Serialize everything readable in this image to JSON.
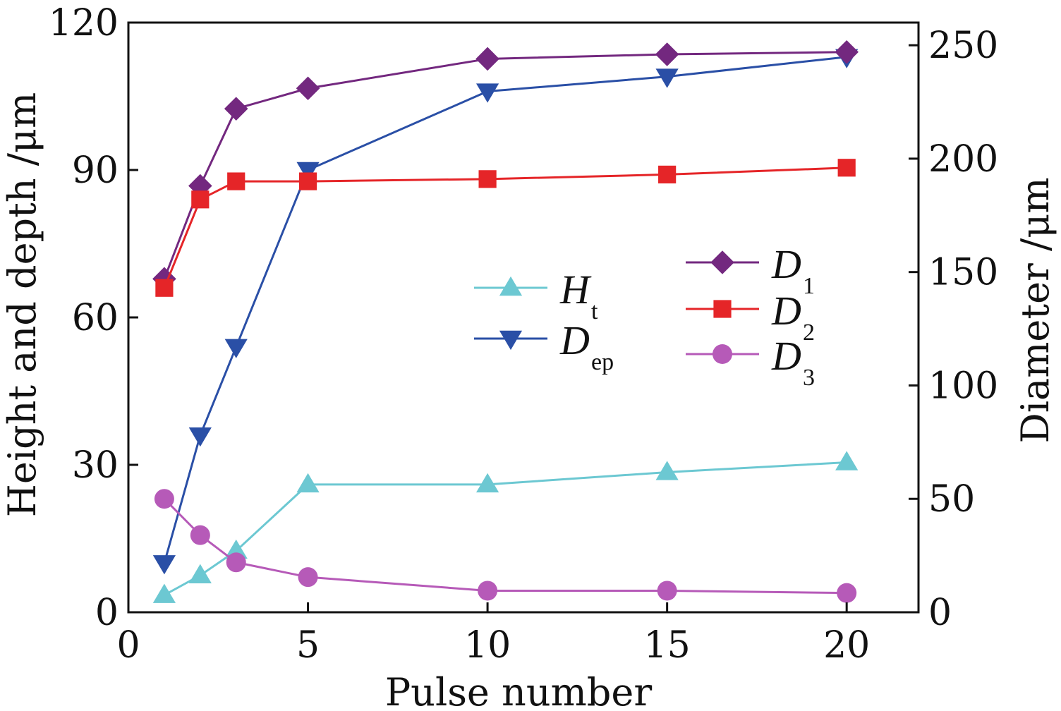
{
  "chart_data": {
    "type": "line",
    "title": "",
    "xlabel": "Pulse number",
    "ylabel_left": "Height and depth /μm",
    "ylabel_right": "Diameter /μm",
    "xlim": [
      0,
      22
    ],
    "ylim_left": [
      0,
      120
    ],
    "ylim_right": [
      0,
      260
    ],
    "xticks": [
      0,
      5,
      10,
      15,
      20
    ],
    "yticks_left": [
      0,
      30,
      60,
      90,
      120
    ],
    "yticks_right": [
      0,
      50,
      100,
      150,
      200,
      250
    ],
    "grid": false,
    "x": [
      1,
      2,
      3,
      5,
      10,
      15,
      20
    ],
    "series": [
      {
        "name": "H",
        "subscript": "t",
        "axis": "left",
        "marker": "triangle-up",
        "color": "#6cc8d2",
        "values": [
          3.5,
          7.5,
          12.5,
          26,
          26,
          28.5,
          30.5
        ]
      },
      {
        "name": "D",
        "subscript": "ep",
        "axis": "left",
        "marker": "triangle-down",
        "color": "#2a4fa6",
        "values": [
          10,
          36,
          54,
          90,
          106,
          109,
          113
        ]
      },
      {
        "name": "D",
        "subscript": "1",
        "axis": "right",
        "marker": "diamond",
        "color": "#73287f",
        "values": [
          147,
          188,
          222,
          231,
          244,
          246,
          247
        ]
      },
      {
        "name": "D",
        "subscript": "2",
        "axis": "right",
        "marker": "square",
        "color": "#e52528",
        "values": [
          143,
          182,
          190,
          190,
          191,
          193,
          196
        ]
      },
      {
        "name": "D",
        "subscript": "3",
        "axis": "right",
        "marker": "circle",
        "color": "#b65ab8",
        "values": [
          50,
          34,
          22,
          15.5,
          9.5,
          9.5,
          8.5
        ]
      }
    ]
  }
}
